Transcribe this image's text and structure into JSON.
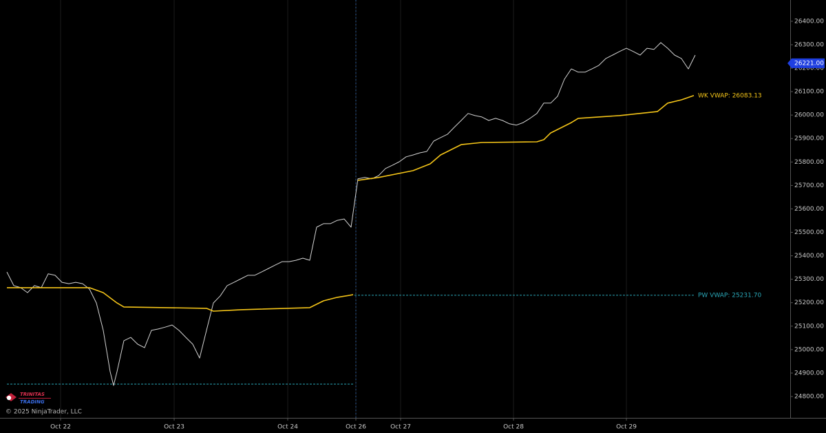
{
  "chart_data": {
    "type": "line",
    "xlim": [
      0,
      114.8
    ],
    "xticks": [
      {
        "value": 8.8,
        "label": "Oct 22"
      },
      {
        "value": 25.3,
        "label": "Oct 23"
      },
      {
        "value": 41.8,
        "label": "Oct 24"
      },
      {
        "value": 51.7,
        "label": "Oct 26"
      },
      {
        "value": 58.2,
        "label": "Oct 27"
      },
      {
        "value": 74.6,
        "label": "Oct 28"
      },
      {
        "value": 91.0,
        "label": "Oct 29"
      }
    ],
    "session_break": 51.7,
    "ylim": [
      24709,
      26476
    ],
    "yticks": [
      {
        "value": 24800,
        "label": "24800.00"
      },
      {
        "value": 24900,
        "label": "24900.00"
      },
      {
        "value": 25000,
        "label": "25000.00"
      },
      {
        "value": 25100,
        "label": "25100.00"
      },
      {
        "value": 25200,
        "label": "25200.00"
      },
      {
        "value": 25300,
        "label": "25300.00"
      },
      {
        "value": 25400,
        "label": "25400.00"
      },
      {
        "value": 25500,
        "label": "25500.00"
      },
      {
        "value": 25600,
        "label": "25600.00"
      },
      {
        "value": 25700,
        "label": "25700.00"
      },
      {
        "value": 25800,
        "label": "25800.00"
      },
      {
        "value": 25900,
        "label": "25900.00"
      },
      {
        "value": 26000,
        "label": "26000.00"
      },
      {
        "value": 26100,
        "label": "26100.00"
      },
      {
        "value": 26200,
        "label": "26200.00"
      },
      {
        "value": 26300,
        "label": "26300.00"
      },
      {
        "value": 26400,
        "label": "26400.00"
      }
    ],
    "grid": true,
    "series": [
      {
        "color": "#d4d4d4",
        "x": [
          1,
          2,
          3,
          4,
          5,
          6,
          7,
          8,
          9,
          10,
          11,
          12,
          13,
          14,
          15,
          16,
          16.5,
          17,
          18,
          19,
          20,
          21,
          22,
          23,
          24,
          25,
          26,
          27,
          28,
          29,
          30,
          31,
          32,
          33,
          34,
          35,
          36,
          37,
          38,
          39,
          40,
          41,
          42,
          43,
          44,
          45,
          46,
          47,
          48,
          49,
          50,
          51,
          52,
          53,
          54,
          55,
          56,
          57,
          58,
          59,
          60,
          61,
          62,
          63,
          64,
          65,
          66,
          67,
          68,
          69,
          70,
          71,
          72,
          73,
          74,
          75,
          76,
          77,
          78,
          79,
          80,
          81,
          82,
          83,
          84,
          85,
          86,
          87,
          88,
          89,
          90,
          91,
          92,
          93,
          94,
          95,
          96,
          97,
          98,
          99,
          100,
          101
        ],
        "values": [
          25331,
          25273,
          25264,
          25243,
          25273,
          25264,
          25323,
          25317,
          25287,
          25281,
          25287,
          25281,
          25258,
          25199,
          25082,
          24906,
          24847,
          24906,
          25038,
          25052,
          25023,
          25008,
          25082,
          25088,
          25096,
          25105,
          25082,
          25052,
          25023,
          24964,
          25082,
          25199,
          25229,
          25273,
          25287,
          25302,
          25317,
          25317,
          25331,
          25346,
          25361,
          25375,
          25375,
          25381,
          25390,
          25381,
          25522,
          25537,
          25537,
          25551,
          25557,
          25522,
          25728,
          25734,
          25728,
          25742,
          25772,
          25786,
          25801,
          25822,
          25830,
          25839,
          25845,
          25889,
          25904,
          25918,
          25948,
          25977,
          26007,
          25998,
          25992,
          25977,
          25986,
          25977,
          25963,
          25957,
          25968,
          25986,
          26007,
          26051,
          26051,
          26080,
          26153,
          26197,
          26183,
          26183,
          26197,
          26212,
          26241,
          26256,
          26271,
          26285,
          26271,
          26256,
          26285,
          26280,
          26309,
          26285,
          26256,
          26241,
          26197,
          26256
        ]
      },
      {
        "color": "#f5c518",
        "x": [
          1,
          13,
          15,
          17,
          18,
          30,
          31,
          35,
          45,
          47,
          49,
          51.3,
          51.4,
          52,
          55,
          60,
          62.5,
          64,
          67,
          70,
          78,
          79,
          80,
          83,
          84,
          90,
          95.5,
          97,
          99,
          100.8
        ],
        "values": [
          25264,
          25264,
          25243,
          25199,
          25182,
          25176,
          25164,
          25170,
          25179,
          25208,
          25223,
          25234,
          null,
          25722,
          25734,
          25763,
          25792,
          25830,
          25874,
          25883,
          25886,
          25895,
          25924,
          25968,
          25986,
          25998,
          26015,
          26051,
          26065,
          26083.13
        ],
        "end_label": "WK VWAP: 26083.13"
      }
    ],
    "reference_lines": [
      {
        "value": 25231.7,
        "color": "#2aa7b8",
        "x_range": [
          51.5,
          100.8
        ],
        "label": "PW VWAP: 25231.70"
      },
      {
        "value": 24853,
        "color": "#2aa7b8",
        "x_range": [
          1,
          51.5
        ]
      }
    ],
    "last_price": {
      "value": 26221,
      "label": "26221.00",
      "color": "#1f3fe0"
    },
    "logo": [
      "TRINITAS",
      "TRADING"
    ],
    "copyright": "© 2025 NinjaTrader, LLC"
  }
}
